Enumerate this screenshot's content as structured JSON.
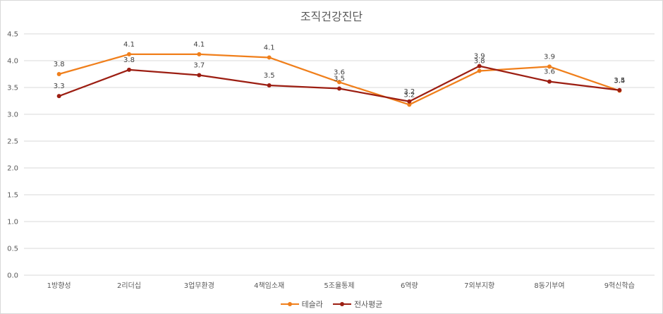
{
  "chart_data": {
    "type": "line",
    "title": "조직건강진단",
    "categories": [
      "1방향성",
      "2리더십",
      "3업무환경",
      "4책임소재",
      "5조율통제",
      "6역량",
      "7외부지향",
      "8동기부여",
      "9혁신학습"
    ],
    "ylim": [
      0,
      4.5
    ],
    "yticks": [
      "0.0",
      "0.5",
      "1.0",
      "1.5",
      "2.0",
      "2.5",
      "3.0",
      "3.5",
      "4.0",
      "4.5"
    ],
    "grid": true,
    "legend_position": "bottom",
    "series": [
      {
        "name": "테슬라",
        "color": "#f07f1b",
        "values": [
          3.75,
          4.12,
          4.12,
          4.06,
          3.6,
          3.18,
          3.81,
          3.89,
          3.44
        ],
        "labels": [
          "3.8",
          "4.1",
          "4.1",
          "4.1",
          "3.6",
          "3.2",
          "3.8",
          "3.9",
          "3.4"
        ]
      },
      {
        "name": "전사평균",
        "color": "#9c1e12",
        "values": [
          3.34,
          3.83,
          3.73,
          3.54,
          3.48,
          3.24,
          3.9,
          3.61,
          3.45
        ],
        "labels": [
          "3.3",
          "3.8",
          "3.7",
          "3.5",
          "3.5",
          "3.2",
          "3.9",
          "3.6",
          "3.5"
        ]
      }
    ]
  }
}
